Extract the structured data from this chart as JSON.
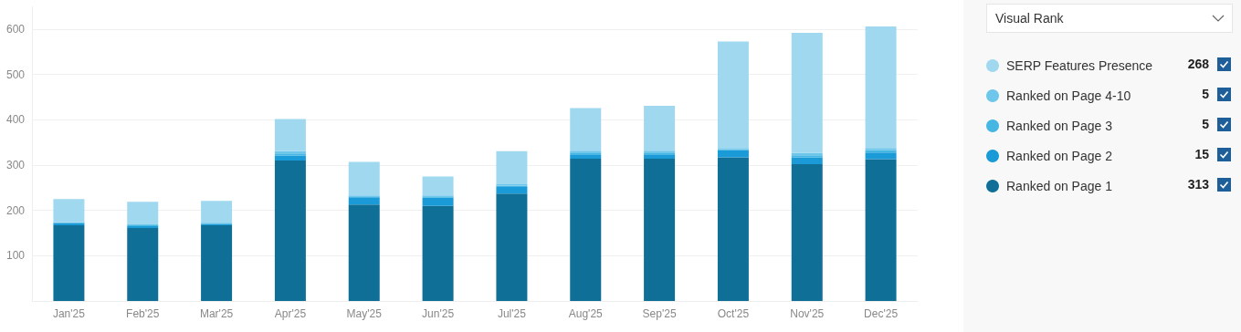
{
  "chart_data": {
    "type": "bar",
    "stacked": true,
    "categories": [
      "Jan'25",
      "Feb'25",
      "Mar'25",
      "Apr'25",
      "May'25",
      "Jun'25",
      "Jul'25",
      "Aug'25",
      "Sep'25",
      "Oct'25",
      "Nov'25",
      "Dec'25"
    ],
    "series": [
      {
        "name": "Ranked on Page 1",
        "color": "#106f97",
        "values": [
          167,
          161,
          167,
          310,
          213,
          210,
          237,
          314,
          314,
          317,
          302,
          313
        ]
      },
      {
        "name": "Ranked on Page 2",
        "color": "#1a9ad6",
        "values": [
          5,
          4,
          3,
          11,
          16,
          18,
          15,
          10,
          10,
          16,
          15,
          15
        ]
      },
      {
        "name": "Ranked on Page 3",
        "color": "#46b6e3",
        "values": [
          1,
          2,
          2,
          5,
          2,
          3,
          3,
          4,
          4,
          2,
          5,
          5
        ]
      },
      {
        "name": "Ranked on Page 4-10",
        "color": "#6ec6ea",
        "values": [
          1,
          2,
          1,
          5,
          2,
          2,
          3,
          4,
          4,
          3,
          5,
          5
        ]
      },
      {
        "name": "SERP Features Presence",
        "color": "#9fd8ef",
        "values": [
          51,
          50,
          48,
          71,
          74,
          42,
          73,
          94,
          99,
          235,
          265,
          268
        ]
      }
    ],
    "ylim": [
      0,
      650
    ],
    "yticks": [
      100,
      200,
      300,
      400,
      500,
      600
    ],
    "grid": "y",
    "legend": "right",
    "annotations": [
      "Visual Rank",
      "268",
      "5",
      "5",
      "15",
      "313"
    ]
  }
}
